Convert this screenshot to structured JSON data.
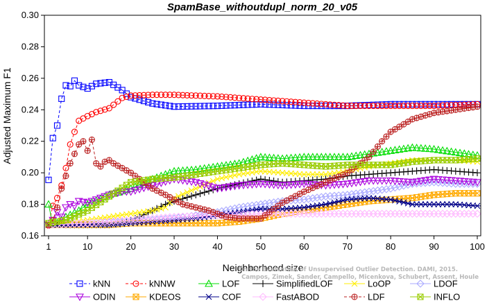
{
  "chart_data": {
    "type": "line",
    "title": "SpamBase_withoutdupl_norm_20_v05",
    "xlabel": "Neighborhood size",
    "ylabel": "Adjusted Maximum F1",
    "xlim": [
      1,
      100
    ],
    "ylim": [
      0.16,
      0.3
    ],
    "xticks": [
      1,
      10,
      20,
      30,
      40,
      50,
      60,
      70,
      80,
      90,
      100
    ],
    "yticks": [
      0.16,
      0.18,
      0.2,
      0.22,
      0.24,
      0.26,
      0.28,
      0.3
    ],
    "grid": false,
    "legend_position": "bottom",
    "watermark": [
      "Campos, Zimek, Sander, Campello, Micenkova, Schubert, Assent, Houle",
      "On the Evaluation of Unsupervised Outlier Detection. DAMI, 2015."
    ],
    "series": [
      {
        "name": "kNN",
        "color": "#0000ff",
        "marker": "square",
        "dashed": true,
        "points": [
          [
            1,
            0.1955
          ],
          [
            2,
            0.222
          ],
          [
            3,
            0.23
          ],
          [
            4,
            0.247
          ],
          [
            5,
            0.2555
          ],
          [
            6,
            0.255
          ],
          [
            7,
            0.2585
          ],
          [
            8,
            0.2555
          ],
          [
            10,
            0.2535
          ],
          [
            12,
            0.2565
          ],
          [
            15,
            0.2575
          ],
          [
            18,
            0.2525
          ],
          [
            20,
            0.248
          ],
          [
            25,
            0.244
          ],
          [
            30,
            0.242
          ],
          [
            40,
            0.2425
          ],
          [
            50,
            0.2435
          ],
          [
            60,
            0.2425
          ],
          [
            70,
            0.2425
          ],
          [
            80,
            0.2435
          ],
          [
            90,
            0.2435
          ],
          [
            100,
            0.2435
          ]
        ]
      },
      {
        "name": "kNNW",
        "color": "#ff0000",
        "marker": "circle",
        "dashed": true,
        "points": [
          [
            1,
            0.1665
          ],
          [
            2,
            0.179
          ],
          [
            3,
            0.184
          ],
          [
            4,
            0.192
          ],
          [
            5,
            0.203
          ],
          [
            6,
            0.218
          ],
          [
            7,
            0.226
          ],
          [
            8,
            0.233
          ],
          [
            10,
            0.236
          ],
          [
            12,
            0.2385
          ],
          [
            15,
            0.241
          ],
          [
            18,
            0.2475
          ],
          [
            20,
            0.249
          ],
          [
            25,
            0.2495
          ],
          [
            30,
            0.2495
          ],
          [
            40,
            0.2485
          ],
          [
            50,
            0.2465
          ],
          [
            60,
            0.2445
          ],
          [
            70,
            0.2425
          ],
          [
            80,
            0.2425
          ],
          [
            90,
            0.2425
          ],
          [
            100,
            0.2435
          ]
        ]
      },
      {
        "name": "LOF",
        "color": "#00dd00",
        "marker": "triangle-up",
        "points": [
          [
            1,
            0.18
          ],
          [
            2,
            0.167
          ],
          [
            3,
            0.168
          ],
          [
            5,
            0.172
          ],
          [
            8,
            0.176
          ],
          [
            10,
            0.18
          ],
          [
            15,
            0.186
          ],
          [
            20,
            0.19
          ],
          [
            25,
            0.196
          ],
          [
            30,
            0.201
          ],
          [
            35,
            0.202
          ],
          [
            40,
            0.204
          ],
          [
            45,
            0.206
          ],
          [
            50,
            0.21
          ],
          [
            55,
            0.209
          ],
          [
            60,
            0.21
          ],
          [
            65,
            0.21
          ],
          [
            70,
            0.21
          ],
          [
            75,
            0.212
          ],
          [
            80,
            0.214
          ],
          [
            85,
            0.216
          ],
          [
            90,
            0.215
          ],
          [
            95,
            0.213
          ],
          [
            100,
            0.211
          ]
        ]
      },
      {
        "name": "SimplifiedLOF",
        "color": "#000000",
        "marker": "plus",
        "points": [
          [
            1,
            0.168
          ],
          [
            5,
            0.167
          ],
          [
            10,
            0.167
          ],
          [
            15,
            0.167
          ],
          [
            18,
            0.168
          ],
          [
            20,
            0.17
          ],
          [
            22,
            0.172
          ],
          [
            25,
            0.176
          ],
          [
            28,
            0.18
          ],
          [
            30,
            0.182
          ],
          [
            35,
            0.186
          ],
          [
            40,
            0.19
          ],
          [
            45,
            0.193
          ],
          [
            50,
            0.196
          ],
          [
            55,
            0.194
          ],
          [
            60,
            0.195
          ],
          [
            65,
            0.196
          ],
          [
            70,
            0.198
          ],
          [
            75,
            0.199
          ],
          [
            80,
            0.2
          ],
          [
            85,
            0.201
          ],
          [
            90,
            0.202
          ],
          [
            95,
            0.201
          ],
          [
            100,
            0.2
          ]
        ]
      },
      {
        "name": "LoOP",
        "color": "#ffee00",
        "marker": "x",
        "points": [
          [
            1,
            0.167
          ],
          [
            5,
            0.168
          ],
          [
            10,
            0.17
          ],
          [
            15,
            0.172
          ],
          [
            20,
            0.174
          ],
          [
            25,
            0.176
          ],
          [
            28,
            0.178
          ],
          [
            30,
            0.184
          ],
          [
            35,
            0.19
          ],
          [
            40,
            0.196
          ],
          [
            45,
            0.199
          ],
          [
            50,
            0.201
          ],
          [
            55,
            0.2
          ],
          [
            60,
            0.199
          ],
          [
            65,
            0.199
          ],
          [
            70,
            0.201
          ],
          [
            75,
            0.204
          ],
          [
            80,
            0.206
          ],
          [
            85,
            0.208
          ],
          [
            90,
            0.208
          ],
          [
            95,
            0.208
          ],
          [
            100,
            0.207
          ]
        ]
      },
      {
        "name": "LDOF",
        "color": "#aaaaff",
        "marker": "diamond",
        "points": [
          [
            1,
            0.167
          ],
          [
            10,
            0.168
          ],
          [
            20,
            0.169
          ],
          [
            30,
            0.171
          ],
          [
            40,
            0.175
          ],
          [
            45,
            0.178
          ],
          [
            50,
            0.18
          ],
          [
            55,
            0.182
          ],
          [
            60,
            0.183
          ],
          [
            65,
            0.185
          ],
          [
            70,
            0.186
          ],
          [
            75,
            0.188
          ],
          [
            80,
            0.19
          ],
          [
            85,
            0.193
          ],
          [
            90,
            0.194
          ],
          [
            95,
            0.193
          ],
          [
            100,
            0.193
          ]
        ]
      },
      {
        "name": "ODIN",
        "color": "#aa00dd",
        "marker": "triangle-down",
        "points": [
          [
            1,
            0.167
          ],
          [
            2,
            0.17
          ],
          [
            3,
            0.175
          ],
          [
            4,
            0.172
          ],
          [
            5,
            0.178
          ],
          [
            6,
            0.18
          ],
          [
            7,
            0.179
          ],
          [
            8,
            0.182
          ],
          [
            10,
            0.181
          ],
          [
            12,
            0.183
          ],
          [
            15,
            0.186
          ],
          [
            18,
            0.188
          ],
          [
            20,
            0.188
          ],
          [
            25,
            0.192
          ],
          [
            30,
            0.196
          ],
          [
            35,
            0.194
          ],
          [
            40,
            0.19
          ],
          [
            45,
            0.192
          ],
          [
            50,
            0.193
          ],
          [
            55,
            0.192
          ],
          [
            60,
            0.193
          ],
          [
            65,
            0.192
          ],
          [
            70,
            0.193
          ],
          [
            75,
            0.195
          ],
          [
            80,
            0.195
          ],
          [
            85,
            0.194
          ],
          [
            90,
            0.196
          ],
          [
            95,
            0.195
          ],
          [
            100,
            0.194
          ]
        ]
      },
      {
        "name": "KDEOS",
        "color": "#ffaa00",
        "marker": "square-x",
        "points": [
          [
            1,
            0.167
          ],
          [
            5,
            0.167
          ],
          [
            10,
            0.167
          ],
          [
            15,
            0.167
          ],
          [
            20,
            0.168
          ],
          [
            25,
            0.168
          ],
          [
            30,
            0.168
          ],
          [
            35,
            0.168
          ],
          [
            40,
            0.168
          ],
          [
            45,
            0.169
          ],
          [
            50,
            0.171
          ],
          [
            55,
            0.174
          ],
          [
            60,
            0.176
          ],
          [
            65,
            0.178
          ],
          [
            70,
            0.18
          ],
          [
            75,
            0.182
          ],
          [
            80,
            0.183
          ],
          [
            85,
            0.184
          ],
          [
            90,
            0.186
          ],
          [
            95,
            0.187
          ],
          [
            100,
            0.187
          ]
        ]
      },
      {
        "name": "COF",
        "color": "#000088",
        "marker": "asterisk",
        "points": [
          [
            1,
            0.167
          ],
          [
            5,
            0.167
          ],
          [
            10,
            0.167
          ],
          [
            15,
            0.167
          ],
          [
            20,
            0.168
          ],
          [
            25,
            0.169
          ],
          [
            30,
            0.17
          ],
          [
            35,
            0.171
          ],
          [
            40,
            0.173
          ],
          [
            45,
            0.175
          ],
          [
            50,
            0.177
          ],
          [
            55,
            0.177
          ],
          [
            60,
            0.178
          ],
          [
            65,
            0.18
          ],
          [
            70,
            0.183
          ],
          [
            75,
            0.184
          ],
          [
            80,
            0.183
          ],
          [
            85,
            0.18
          ],
          [
            90,
            0.18
          ],
          [
            95,
            0.18
          ],
          [
            100,
            0.179
          ]
        ]
      },
      {
        "name": "FastABOD",
        "color": "#ffbbff",
        "marker": "diamond",
        "points": [
          [
            1,
            0.167
          ],
          [
            10,
            0.168
          ],
          [
            20,
            0.17
          ],
          [
            30,
            0.172
          ],
          [
            40,
            0.173
          ],
          [
            50,
            0.174
          ],
          [
            60,
            0.174
          ],
          [
            70,
            0.174
          ],
          [
            80,
            0.174
          ],
          [
            90,
            0.174
          ],
          [
            100,
            0.174
          ]
        ]
      },
      {
        "name": "LDF",
        "color": "#bb2222",
        "marker": "circle-plus",
        "dashed": true,
        "points": [
          [
            1,
            0.167
          ],
          [
            2,
            0.17
          ],
          [
            3,
            0.178
          ],
          [
            4,
            0.19
          ],
          [
            5,
            0.198
          ],
          [
            6,
            0.206
          ],
          [
            7,
            0.212
          ],
          [
            8,
            0.218
          ],
          [
            9,
            0.22
          ],
          [
            10,
            0.214
          ],
          [
            11,
            0.221
          ],
          [
            12,
            0.206
          ],
          [
            13,
            0.204
          ],
          [
            14,
            0.207
          ],
          [
            15,
            0.208
          ],
          [
            16,
            0.206
          ],
          [
            18,
            0.203
          ],
          [
            20,
            0.2
          ],
          [
            22,
            0.196
          ],
          [
            25,
            0.19
          ],
          [
            28,
            0.186
          ],
          [
            30,
            0.183
          ],
          [
            32,
            0.18
          ],
          [
            35,
            0.178
          ],
          [
            38,
            0.176
          ],
          [
            40,
            0.174
          ],
          [
            42,
            0.172
          ],
          [
            45,
            0.171
          ],
          [
            50,
            0.171
          ],
          [
            52,
            0.175
          ],
          [
            55,
            0.181
          ],
          [
            60,
            0.188
          ],
          [
            65,
            0.194
          ],
          [
            70,
            0.2
          ],
          [
            75,
            0.21
          ],
          [
            78,
            0.22
          ],
          [
            80,
            0.226
          ],
          [
            85,
            0.234
          ],
          [
            90,
            0.238
          ],
          [
            95,
            0.24
          ],
          [
            100,
            0.242
          ]
        ]
      },
      {
        "name": "INFLO",
        "color": "#99cc00",
        "marker": "square-x",
        "points": [
          [
            1,
            0.168
          ],
          [
            5,
            0.17
          ],
          [
            10,
            0.176
          ],
          [
            15,
            0.185
          ],
          [
            20,
            0.194
          ],
          [
            25,
            0.196
          ],
          [
            30,
            0.197
          ],
          [
            35,
            0.199
          ],
          [
            40,
            0.201
          ],
          [
            45,
            0.203
          ],
          [
            50,
            0.205
          ],
          [
            55,
            0.206
          ],
          [
            60,
            0.205
          ],
          [
            65,
            0.204
          ],
          [
            70,
            0.205
          ],
          [
            75,
            0.205
          ],
          [
            80,
            0.205
          ],
          [
            85,
            0.207
          ],
          [
            90,
            0.208
          ],
          [
            95,
            0.208
          ],
          [
            100,
            0.209
          ]
        ]
      }
    ]
  }
}
